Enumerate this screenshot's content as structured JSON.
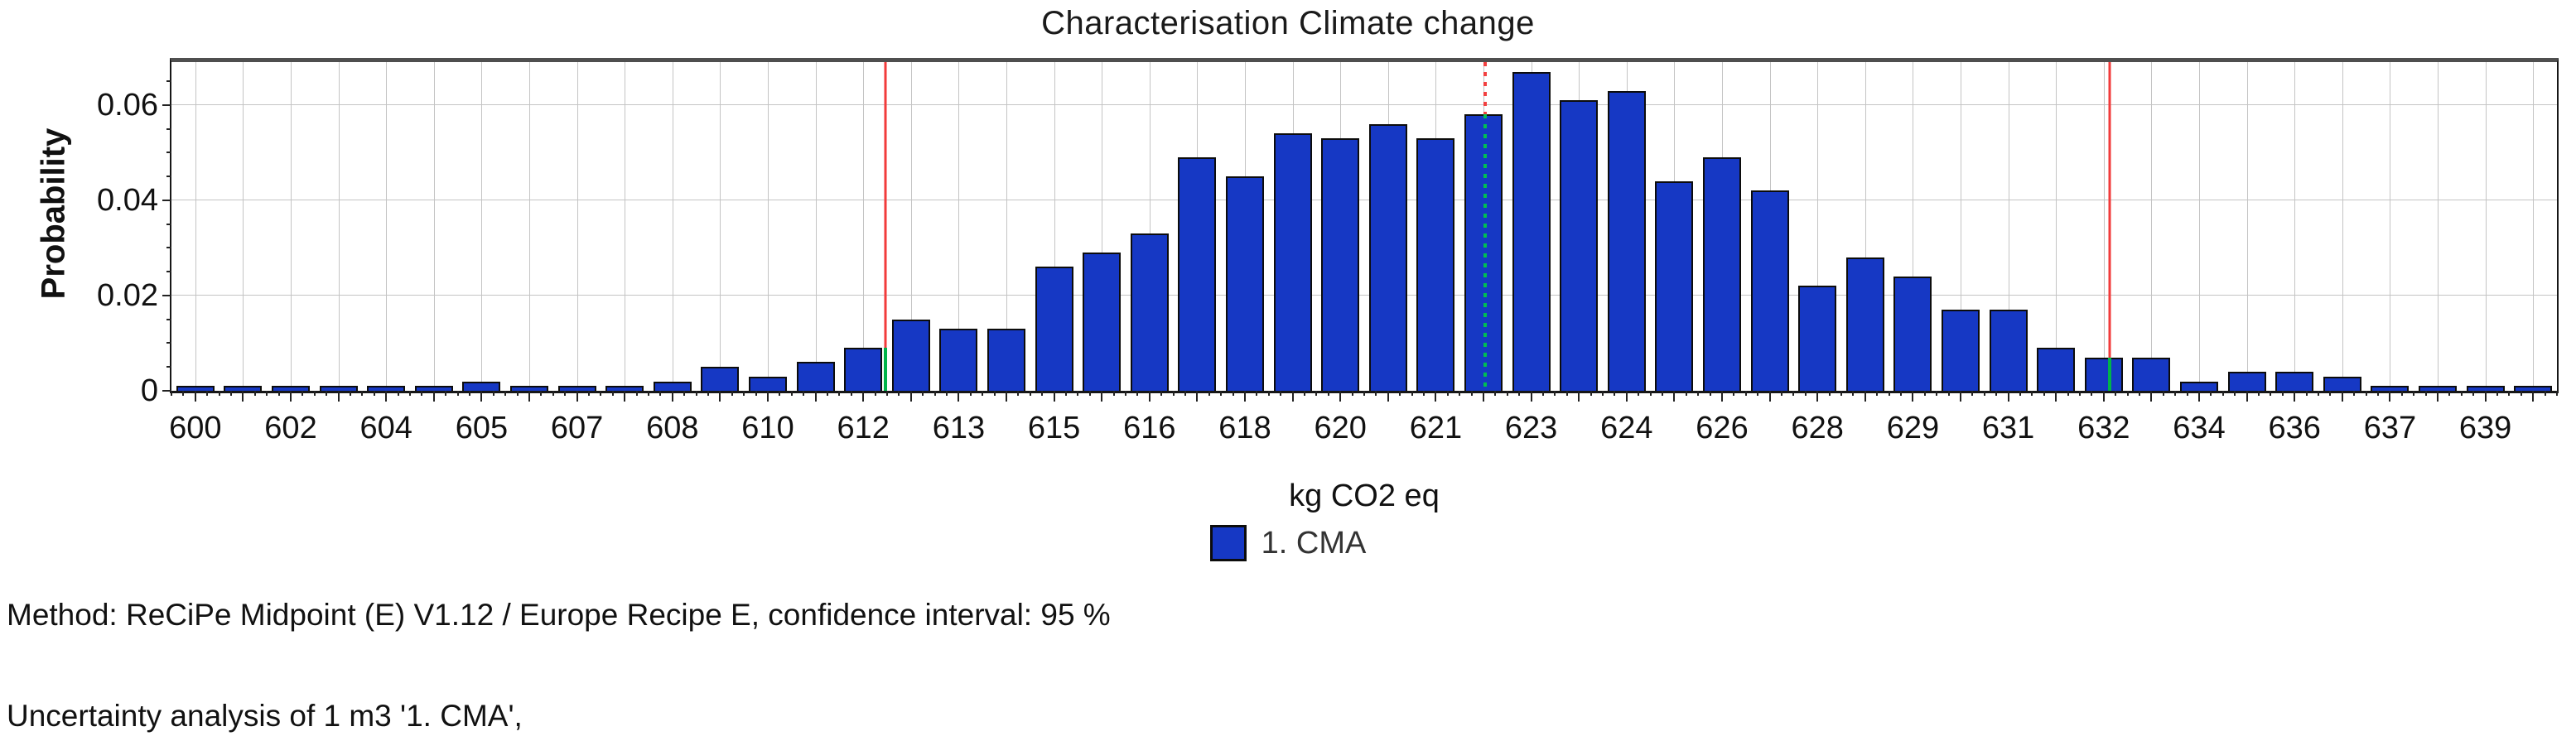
{
  "chart": {
    "title": "Characterisation Climate change",
    "ylabel": "Probability",
    "xlabel": "kg CO2 eq",
    "legend": {
      "label": "1. CMA",
      "swatch_color": "#1638c4"
    },
    "footer": {
      "method": "Method: ReCiPe Midpoint (E) V1.12 / Europe Recipe E, confidence interval: 95 %",
      "analysis": "Uncertainty analysis of 1 m3 '1. CMA',"
    }
  },
  "chart_data": {
    "type": "bar",
    "subtype": "histogram",
    "title": "Characterisation Climate change",
    "xlabel": "kg CO2 eq",
    "ylabel": "Probability",
    "grid": true,
    "legend_position": "bottom",
    "legend": [
      {
        "label": "1. CMA",
        "color": "#1638c4"
      }
    ],
    "ylim": [
      0,
      0.069
    ],
    "ytick_values": [
      0,
      0.02,
      0.04,
      0.06
    ],
    "ytick_labels": [
      "0",
      "0.02",
      "0.04",
      "0.06"
    ],
    "y_minor_step": 0.005,
    "n_bins": 50,
    "xtick_labels": [
      "600",
      "602",
      "604",
      "605",
      "607",
      "608",
      "610",
      "612",
      "613",
      "615",
      "616",
      "618",
      "620",
      "621",
      "623",
      "624",
      "626",
      "628",
      "629",
      "631",
      "632",
      "634",
      "636",
      "637",
      "639"
    ],
    "xtick_slot_indices": [
      0,
      2,
      4,
      6,
      8,
      10,
      12,
      14,
      16,
      18,
      20,
      22,
      24,
      26,
      28,
      30,
      32,
      34,
      36,
      38,
      40,
      42,
      44,
      46,
      48
    ],
    "values": [
      0.001,
      0.001,
      0.001,
      0.001,
      0.001,
      0.001,
      0.002,
      0.001,
      0.001,
      0.001,
      0.002,
      0.005,
      0.003,
      0.006,
      0.009,
      0.015,
      0.013,
      0.013,
      0.026,
      0.029,
      0.033,
      0.049,
      0.045,
      0.054,
      0.053,
      0.056,
      0.053,
      0.058,
      0.067,
      0.061,
      0.063,
      0.044,
      0.049,
      0.042,
      0.022,
      0.028,
      0.024,
      0.017,
      0.017,
      0.009,
      0.007,
      0.007,
      0.002,
      0.004,
      0.004,
      0.003,
      0.001,
      0.001,
      0.001,
      0.001
    ],
    "colors": {
      "bar_fill": "#1638c4",
      "bar_border": "#0c0c0c",
      "grid_line": "#c4c4c4",
      "ci_line_red": "#f23b3b",
      "ci_line_green": "#00b44a",
      "median_dot_red": "#f24040",
      "median_dot_green": "#00c050"
    },
    "annotations": {
      "confidence_interval": {
        "level_pct": 95,
        "lower": {
          "x_fraction": 0.2993,
          "x_value_approx": 612.3,
          "green_below_value": 0.009
        },
        "upper": {
          "x_fraction": 0.8125,
          "x_value_approx": 632.3,
          "green_below_value": 0.007
        }
      },
      "median_line": {
        "style": "dotted",
        "x_fraction": 0.5507,
        "x_value_approx": 622.2,
        "red_above_value": 0.058
      }
    }
  }
}
